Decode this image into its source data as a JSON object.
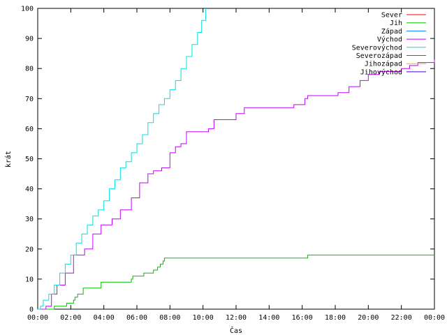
{
  "chart_data": {
    "type": "line",
    "xlabel": "Čas",
    "ylabel": "krát",
    "xlim": [
      "00:00",
      "24:00"
    ],
    "ylim": [
      0,
      100
    ],
    "x_ticks": [
      "00:00",
      "02:00",
      "04:00",
      "06:00",
      "08:00",
      "10:00",
      "12:00",
      "14:00",
      "16:00",
      "18:00",
      "20:00",
      "22:00",
      "00:00"
    ],
    "y_ticks": [
      0,
      10,
      20,
      30,
      40,
      50,
      60,
      70,
      80,
      90,
      100
    ],
    "grid": false,
    "legend_position": "top-right",
    "series": [
      {
        "name": "Sever",
        "color": "#ff0000",
        "x": [],
        "y": []
      },
      {
        "name": "Jih",
        "color": "#00c000",
        "x": [
          "00:00",
          "00:55",
          "01:00",
          "01:40",
          "01:45",
          "02:10",
          "02:15",
          "02:25",
          "02:45",
          "03:45",
          "03:50",
          "05:40",
          "05:45",
          "06:20",
          "06:25",
          "07:00",
          "07:15",
          "07:25",
          "07:35",
          "07:40",
          "16:10",
          "16:20",
          "24:00"
        ],
        "y": [
          0,
          0,
          1,
          1,
          2,
          3,
          4,
          5,
          7,
          7,
          9,
          10,
          11,
          11,
          12,
          13,
          14,
          15,
          16,
          17,
          17,
          18,
          18
        ]
      },
      {
        "name": "Západ",
        "color": "#0080ff",
        "x": [],
        "y": []
      },
      {
        "name": "Východ",
        "color": "#c000ff",
        "x": [
          "00:00",
          "00:20",
          "00:30",
          "00:50",
          "01:10",
          "01:40",
          "02:10",
          "02:50",
          "03:20",
          "03:50",
          "04:30",
          "05:00",
          "05:40",
          "06:10",
          "06:40",
          "07:00",
          "07:30",
          "08:00",
          "08:20",
          "08:40",
          "09:00",
          "09:40",
          "10:20",
          "10:40",
          "11:10",
          "11:30",
          "12:00",
          "12:30",
          "13:30",
          "15:30",
          "16:10",
          "16:20",
          "17:40",
          "18:10",
          "18:50",
          "19:30",
          "20:00",
          "20:40",
          "22:00",
          "22:30",
          "23:00",
          "24:00"
        ],
        "y": [
          0,
          0,
          1,
          5,
          8,
          12,
          18,
          20,
          25,
          28,
          30,
          33,
          37,
          42,
          45,
          46,
          47,
          52,
          54,
          55,
          59,
          59,
          60,
          63,
          63,
          63,
          65,
          67,
          67,
          68,
          70,
          71,
          71,
          72,
          74,
          76,
          78,
          79,
          80,
          81,
          82,
          83
        ]
      },
      {
        "name": "Severovýchod",
        "color": "#00e0e0",
        "x": [
          "00:00",
          "00:10",
          "00:20",
          "00:40",
          "01:00",
          "01:20",
          "01:40",
          "02:00",
          "02:20",
          "02:40",
          "03:00",
          "03:20",
          "03:40",
          "04:00",
          "04:20",
          "04:40",
          "05:00",
          "05:20",
          "05:40",
          "06:00",
          "06:20",
          "06:40",
          "07:00",
          "07:20",
          "07:40",
          "08:00",
          "08:20",
          "08:40",
          "09:00",
          "09:20",
          "09:40",
          "09:55",
          "10:10"
        ],
        "y": [
          0,
          1,
          3,
          5,
          8,
          12,
          15,
          18,
          22,
          25,
          28,
          31,
          33,
          36,
          40,
          43,
          47,
          49,
          52,
          55,
          58,
          62,
          65,
          68,
          70,
          73,
          76,
          80,
          84,
          88,
          92,
          96,
          100
        ]
      },
      {
        "name": "Severozápad",
        "color": "#c04000",
        "x": [],
        "y": []
      },
      {
        "name": "Jihozápad",
        "color": "#e0c000",
        "x": [],
        "y": []
      },
      {
        "name": "Jihovýchod",
        "color": "#4000c0",
        "x": [],
        "y": []
      }
    ]
  }
}
